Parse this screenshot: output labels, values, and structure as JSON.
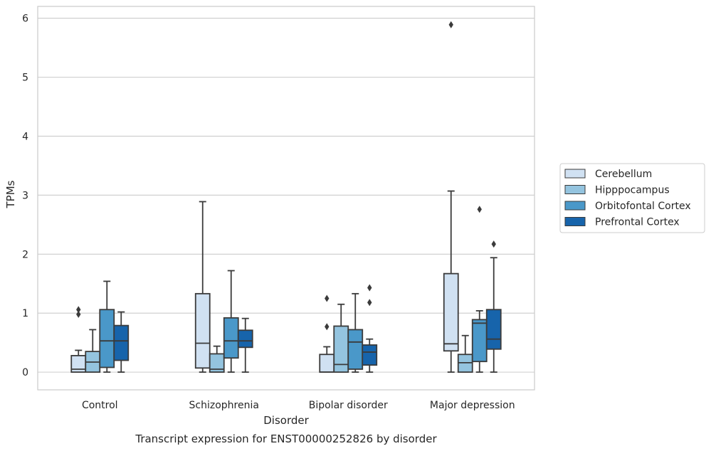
{
  "caption": "Transcript expression for ENST00000252826 by disorder",
  "chart_data": {
    "type": "box",
    "xlabel": "Disorder",
    "ylabel": "TPMs",
    "ylim": [
      -0.3,
      6.2
    ],
    "y_ticks": [
      0,
      1,
      2,
      3,
      4,
      5,
      6
    ],
    "grid": "horizontal",
    "legend_position": "right",
    "categories": [
      "Control",
      "Schizophrenia",
      "Bipolar disorder",
      "Major depression"
    ],
    "series": [
      {
        "name": "Cerebellum",
        "color": "#d0e1f2",
        "boxes": [
          {
            "q1": 0.0,
            "median": 0.05,
            "q3": 0.28,
            "whisker_low": 0.0,
            "whisker_high": 0.37,
            "outliers": [
              0.98,
              1.06
            ]
          },
          {
            "q1": 0.07,
            "median": 0.49,
            "q3": 1.33,
            "whisker_low": 0.0,
            "whisker_high": 2.89,
            "outliers": []
          },
          {
            "q1": 0.0,
            "median": 0.0,
            "q3": 0.3,
            "whisker_low": 0.0,
            "whisker_high": 0.43,
            "outliers": [
              0.77,
              1.25
            ]
          },
          {
            "q1": 0.36,
            "median": 0.48,
            "q3": 1.67,
            "whisker_low": 0.0,
            "whisker_high": 3.07,
            "outliers": [
              5.89
            ]
          }
        ]
      },
      {
        "name": "Hipppocampus",
        "color": "#94c4df",
        "boxes": [
          {
            "q1": 0.0,
            "median": 0.17,
            "q3": 0.35,
            "whisker_low": 0.0,
            "whisker_high": 0.72,
            "outliers": []
          },
          {
            "q1": 0.0,
            "median": 0.05,
            "q3": 0.31,
            "whisker_low": 0.0,
            "whisker_high": 0.44,
            "outliers": []
          },
          {
            "q1": 0.0,
            "median": 0.13,
            "q3": 0.78,
            "whisker_low": 0.0,
            "whisker_high": 1.15,
            "outliers": []
          },
          {
            "q1": 0.0,
            "median": 0.16,
            "q3": 0.3,
            "whisker_low": 0.0,
            "whisker_high": 0.62,
            "outliers": []
          }
        ]
      },
      {
        "name": "Orbitofontal Cortex",
        "color": "#4a98c9",
        "boxes": [
          {
            "q1": 0.08,
            "median": 0.53,
            "q3": 1.06,
            "whisker_low": 0.0,
            "whisker_high": 1.54,
            "outliers": []
          },
          {
            "q1": 0.24,
            "median": 0.53,
            "q3": 0.92,
            "whisker_low": 0.0,
            "whisker_high": 1.72,
            "outliers": []
          },
          {
            "q1": 0.05,
            "median": 0.51,
            "q3": 0.72,
            "whisker_low": 0.0,
            "whisker_high": 1.33,
            "outliers": []
          },
          {
            "q1": 0.18,
            "median": 0.83,
            "q3": 0.89,
            "whisker_low": 0.0,
            "whisker_high": 1.04,
            "outliers": [
              2.76
            ]
          }
        ]
      },
      {
        "name": "Prefrontal Cortex",
        "color": "#1764ab",
        "boxes": [
          {
            "q1": 0.2,
            "median": 0.53,
            "q3": 0.79,
            "whisker_low": 0.0,
            "whisker_high": 1.02,
            "outliers": []
          },
          {
            "q1": 0.42,
            "median": 0.53,
            "q3": 0.71,
            "whisker_low": 0.0,
            "whisker_high": 0.91,
            "outliers": []
          },
          {
            "q1": 0.12,
            "median": 0.34,
            "q3": 0.46,
            "whisker_low": 0.0,
            "whisker_high": 0.56,
            "outliers": [
              1.18,
              1.43
            ]
          },
          {
            "q1": 0.39,
            "median": 0.56,
            "q3": 1.06,
            "whisker_low": 0.0,
            "whisker_high": 1.94,
            "outliers": [
              2.17
            ]
          }
        ]
      }
    ]
  }
}
